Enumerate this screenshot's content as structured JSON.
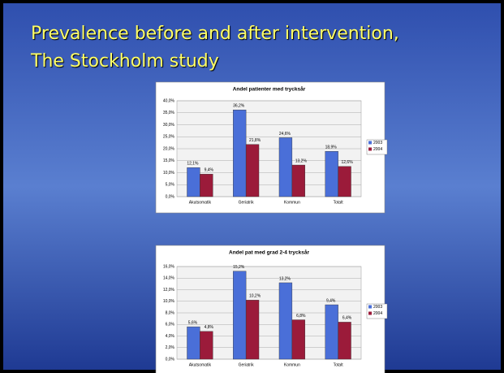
{
  "slide_title": [
    "Prevalence before and after intervention,",
    "The Stockholm study"
  ],
  "chart_data": [
    {
      "type": "bar",
      "title": "Andel patienter med trycksår",
      "categories": [
        "Akutsomatik",
        "Geriatrik",
        "Kommun",
        "Totalt"
      ],
      "series": [
        {
          "name": "2003",
          "color": "#4a6fd8",
          "values": [
            12.1,
            36.2,
            24.6,
            18.9
          ],
          "value_labels": [
            "12,1%",
            "36,2%",
            "24,6%",
            "18,9%"
          ]
        },
        {
          "name": "2004",
          "color": "#9b1b3a",
          "values": [
            9.4,
            21.8,
            13.2,
            12.6
          ],
          "value_labels": [
            "9,4%",
            "21,8%",
            "13,2%",
            "12,6%"
          ]
        }
      ],
      "ylim": [
        0,
        40
      ],
      "yticks": [
        {
          "value": 0,
          "label": "0,0%"
        },
        {
          "value": 5,
          "label": "5,0%"
        },
        {
          "value": 10,
          "label": "10,0%"
        },
        {
          "value": 15,
          "label": "15,0%"
        },
        {
          "value": 20,
          "label": "20,0%"
        },
        {
          "value": 25,
          "label": "25,0%"
        },
        {
          "value": 30,
          "label": "30,0%"
        },
        {
          "value": 35,
          "label": "35,0%"
        },
        {
          "value": 40,
          "label": "40,0%"
        }
      ],
      "grid": true,
      "legend": "right"
    },
    {
      "type": "bar",
      "title": "Andel pat med grad 2-4 trycksår",
      "categories": [
        "Akutsomatik",
        "Geriatrik",
        "Kommun",
        "Totalt"
      ],
      "series": [
        {
          "name": "2003",
          "color": "#4a6fd8",
          "values": [
            5.6,
            15.2,
            13.2,
            9.4
          ],
          "value_labels": [
            "5,6%",
            "15,2%",
            "13,2%",
            "9,4%"
          ]
        },
        {
          "name": "2004",
          "color": "#9b1b3a",
          "values": [
            4.8,
            10.2,
            6.8,
            6.4
          ],
          "value_labels": [
            "4,8%",
            "10,2%",
            "6,8%",
            "6,4%"
          ]
        }
      ],
      "ylim": [
        0,
        16
      ],
      "yticks": [
        {
          "value": 0,
          "label": "0,0%"
        },
        {
          "value": 2,
          "label": "2,0%"
        },
        {
          "value": 4,
          "label": "4,0%"
        },
        {
          "value": 6,
          "label": "6,0%"
        },
        {
          "value": 8,
          "label": "8,0%"
        },
        {
          "value": 10,
          "label": "10,0%"
        },
        {
          "value": 12,
          "label": "12,0%"
        },
        {
          "value": 14,
          "label": "14,0%"
        },
        {
          "value": 16,
          "label": "16,0%"
        }
      ],
      "grid": true,
      "legend": "right"
    }
  ]
}
